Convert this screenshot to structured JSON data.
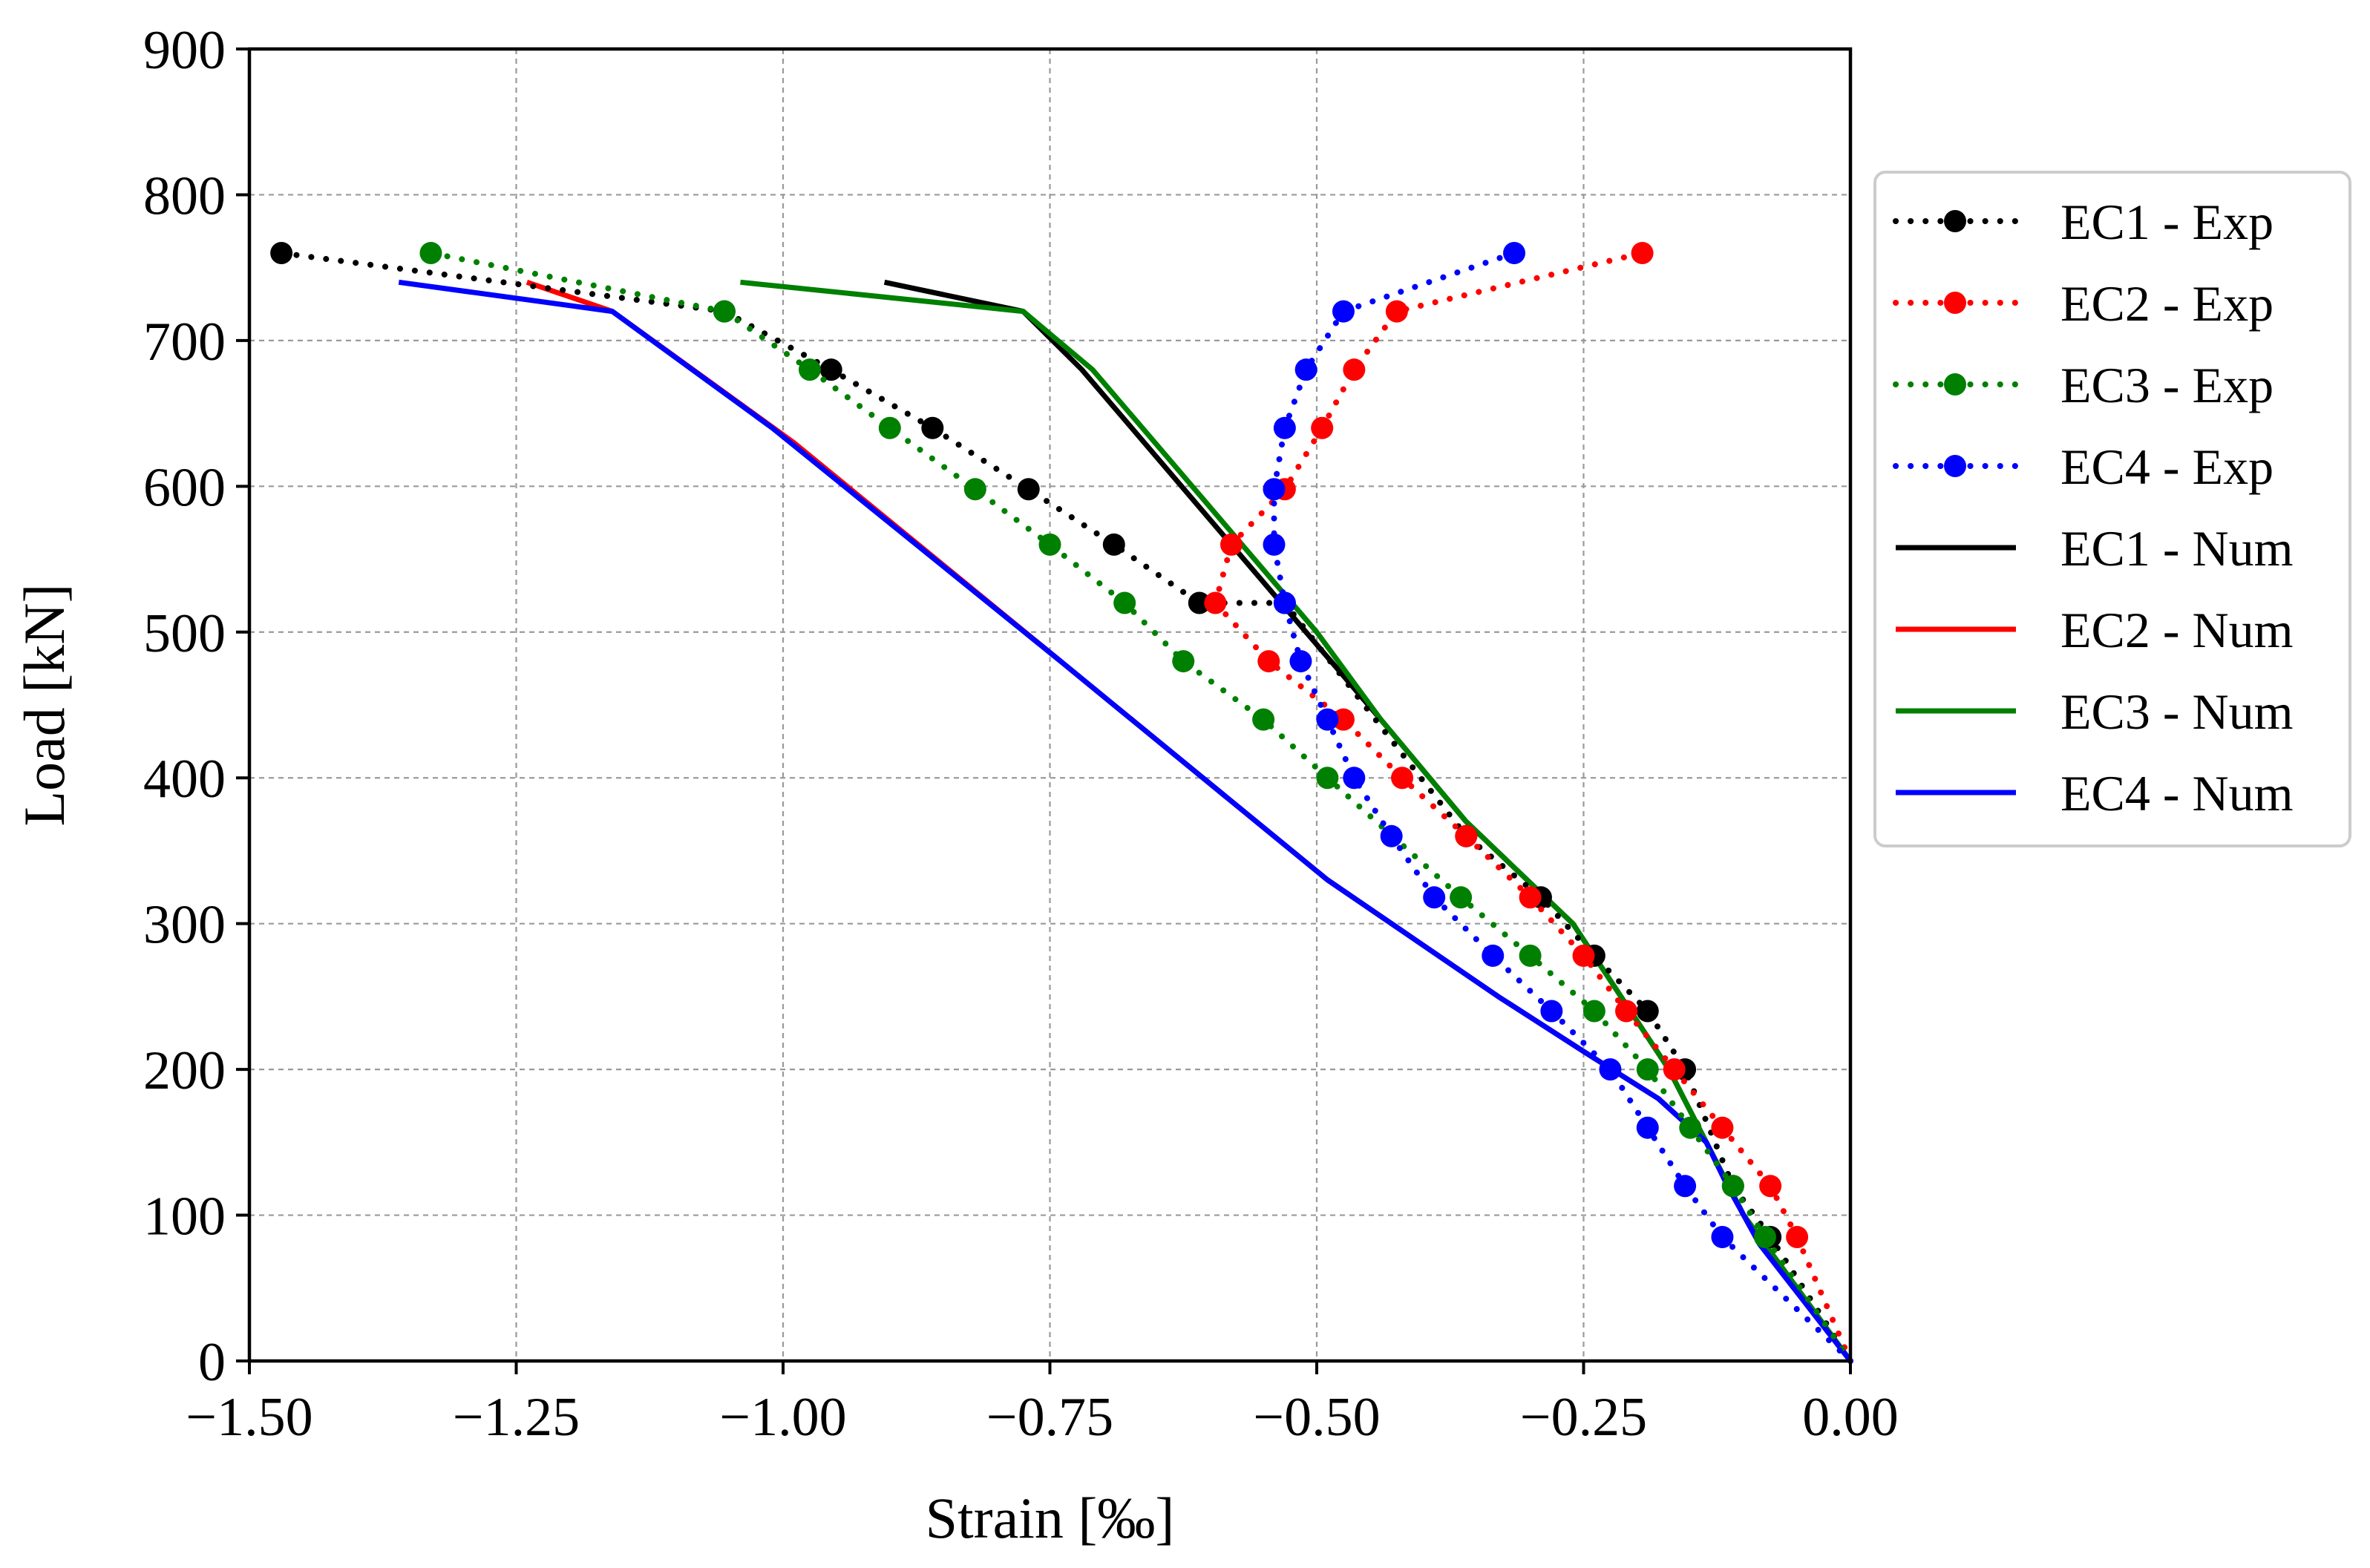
{
  "chart_data": {
    "type": "line",
    "title": "",
    "xlabel": "Strain [‰]",
    "ylabel": "Load [kN]",
    "xlim": [
      -1.5,
      0.0
    ],
    "ylim": [
      0,
      900
    ],
    "xticks": [
      -1.5,
      -1.25,
      -1.0,
      -0.75,
      -0.5,
      -0.25,
      0.0
    ],
    "xtick_labels": [
      "−1.50",
      "−1.25",
      "−1.00",
      "−0.75",
      "−0.50",
      "−0.25",
      "0.00"
    ],
    "yticks": [
      0,
      100,
      200,
      300,
      400,
      500,
      600,
      700,
      800,
      900
    ],
    "ytick_labels": [
      "0",
      "100",
      "200",
      "300",
      "400",
      "500",
      "600",
      "700",
      "800",
      "900"
    ],
    "grid": true,
    "legend_position": "right, outside plot",
    "series": [
      {
        "name": "EC1 - Exp",
        "color": "#000000",
        "style": "dotted",
        "marker": "circle",
        "x": [
          0.0,
          -0.075,
          -0.11,
          -0.155,
          -0.19,
          -0.24,
          -0.29,
          -0.36,
          -0.53,
          -0.61,
          -0.69,
          -0.77,
          -0.86,
          -0.955,
          -1.055,
          -1.47
        ],
        "y": [
          0,
          85,
          120,
          200,
          240,
          278,
          318,
          360,
          520,
          520,
          560,
          598,
          640,
          680,
          720,
          760
        ]
      },
      {
        "name": "EC2 - Exp",
        "color": "#ff0000",
        "style": "dotted",
        "marker": "circle",
        "x": [
          0.0,
          -0.05,
          -0.075,
          -0.12,
          -0.165,
          -0.21,
          -0.25,
          -0.3,
          -0.36,
          -0.42,
          -0.475,
          -0.545,
          -0.595,
          -0.58,
          -0.53,
          -0.495,
          -0.465,
          -0.425,
          -0.195
        ],
        "y": [
          0,
          85,
          120,
          160,
          200,
          240,
          278,
          318,
          360,
          400,
          440,
          480,
          520,
          560,
          598,
          640,
          680,
          720,
          760
        ]
      },
      {
        "name": "EC3 - Exp",
        "color": "#008000",
        "style": "dotted",
        "marker": "circle",
        "x": [
          0.0,
          -0.08,
          -0.11,
          -0.15,
          -0.19,
          -0.24,
          -0.3,
          -0.365,
          -0.49,
          -0.55,
          -0.625,
          -0.68,
          -0.75,
          -0.82,
          -0.9,
          -0.975,
          -1.055,
          -1.33
        ],
        "y": [
          0,
          85,
          120,
          160,
          200,
          240,
          278,
          318,
          400,
          440,
          480,
          520,
          560,
          598,
          640,
          680,
          720,
          760
        ]
      },
      {
        "name": "EC4 - Exp",
        "color": "#0000ff",
        "style": "dotted",
        "marker": "circle",
        "x": [
          0.0,
          -0.12,
          -0.155,
          -0.19,
          -0.225,
          -0.28,
          -0.335,
          -0.39,
          -0.43,
          -0.465,
          -0.49,
          -0.515,
          -0.53,
          -0.54,
          -0.54,
          -0.53,
          -0.51,
          -0.475,
          -0.315
        ],
        "y": [
          0,
          85,
          120,
          160,
          200,
          240,
          278,
          318,
          360,
          400,
          440,
          480,
          520,
          560,
          598,
          640,
          680,
          720,
          760
        ]
      },
      {
        "name": "EC1 - Num",
        "color": "#000000",
        "style": "solid",
        "marker": "none",
        "x": [
          0.0,
          -0.1,
          -0.17,
          -0.26,
          -0.36,
          -0.44,
          -0.51,
          -0.58,
          -0.65,
          -0.72,
          -0.775,
          -0.905
        ],
        "y": [
          0,
          100,
          200,
          300,
          370,
          440,
          500,
          560,
          620,
          680,
          720,
          740
        ]
      },
      {
        "name": "EC2 - Num",
        "color": "#ff0000",
        "style": "solid",
        "marker": "none",
        "x": [
          0.0,
          -0.085,
          -0.115,
          -0.135,
          -0.18,
          -0.245,
          -0.33,
          -0.49,
          -0.74,
          -0.99,
          -1.16,
          -1.24
        ],
        "y": [
          0,
          80,
          120,
          150,
          180,
          210,
          250,
          330,
          480,
          630,
          720,
          740
        ]
      },
      {
        "name": "EC3 - Num",
        "color": "#008000",
        "style": "solid",
        "marker": "none",
        "x": [
          0.0,
          -0.1,
          -0.17,
          -0.26,
          -0.36,
          -0.44,
          -0.5,
          -0.57,
          -0.64,
          -0.71,
          -0.775,
          -1.04
        ],
        "y": [
          0,
          100,
          200,
          300,
          370,
          440,
          500,
          560,
          620,
          680,
          720,
          740
        ]
      },
      {
        "name": "EC4 - Num",
        "color": "#0000ff",
        "style": "solid",
        "marker": "none",
        "x": [
          0.0,
          -0.085,
          -0.115,
          -0.135,
          -0.18,
          -0.245,
          -0.33,
          -0.49,
          -0.74,
          -1.01,
          -1.16,
          -1.36
        ],
        "y": [
          0,
          80,
          120,
          150,
          180,
          210,
          250,
          330,
          480,
          640,
          720,
          740
        ]
      }
    ]
  }
}
